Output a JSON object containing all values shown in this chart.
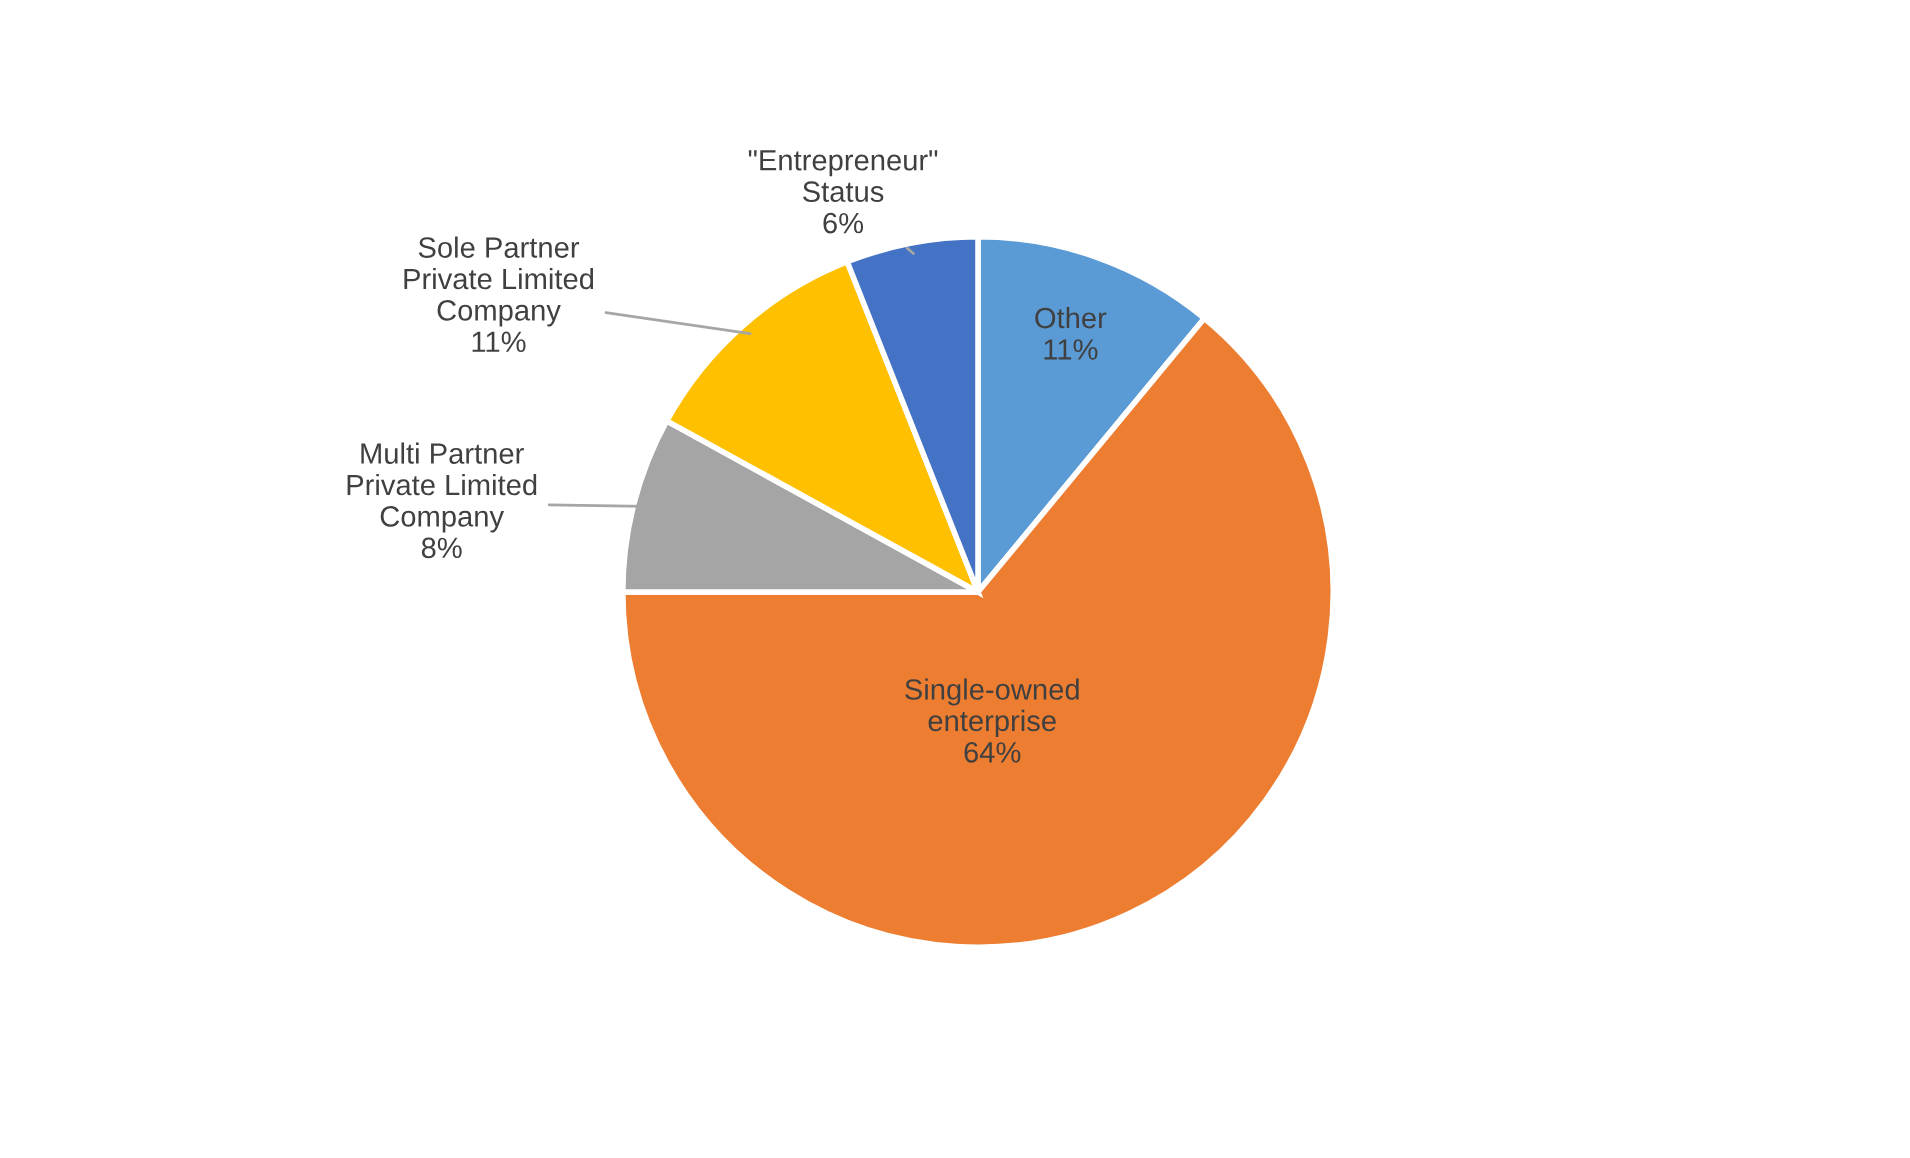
{
  "chart_data": {
    "type": "pie",
    "categories": [
      "Other",
      "Single-owned\nenterprise",
      "Multi Partner\nPrivate Limited\nCompany",
      "Sole Partner\nPrivate Limited\nCompany",
      "\"Entrepreneur\"\nStatus"
    ],
    "values": [
      11,
      64,
      8,
      11,
      6
    ],
    "value_labels": [
      "11%",
      "64%",
      "8%",
      "11%",
      "6%"
    ],
    "colors": [
      "#5b9bd5",
      "#ed7d31",
      "#a5a5a5",
      "#ffc000",
      "#4472c4"
    ],
    "legend": false
  }
}
